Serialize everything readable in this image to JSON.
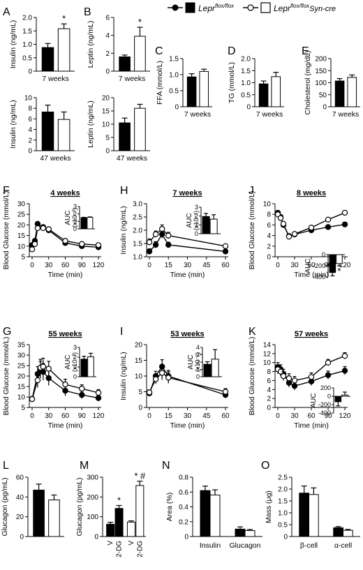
{
  "colors": {
    "ink": "#000000",
    "flox": "#000000",
    "syncre": "#ffffff"
  },
  "legend": {
    "flox_label": "Lepr",
    "flox_sup": "flox/flox",
    "syncre_label": "Lepr",
    "syncre_sup": "flox/flox",
    "syncre_suffix": "Syn-cre"
  },
  "chart_data": [
    {
      "id": "A1",
      "panel_letter": "A",
      "type": "bar",
      "title": "",
      "xlabel": "7 weeks",
      "ylabel": "Insulin (ng/mL)",
      "ylim": [
        0,
        2.0
      ],
      "yticks": [
        "0",
        "0.5",
        "1.0",
        "1.5",
        "2.0"
      ],
      "categories": [
        "Lepr flox/flox",
        "Lepr flox/flox Syn-cre"
      ],
      "values": [
        0.88,
        1.58
      ],
      "errors": [
        0.15,
        0.18
      ],
      "significance": [
        "",
        "*"
      ]
    },
    {
      "id": "A2",
      "panel_letter": "",
      "type": "bar",
      "title": "",
      "xlabel": "47 weeks",
      "ylabel": "Insulin (ng/mL)",
      "ylim": [
        0,
        10
      ],
      "yticks": [
        "0",
        "2",
        "4",
        "6",
        "8",
        "10"
      ],
      "categories": [
        "Lepr flox/flox",
        "Lepr flox/flox Syn-cre"
      ],
      "values": [
        7.3,
        5.9
      ],
      "errors": [
        1.3,
        1.4
      ],
      "significance": [
        "",
        ""
      ]
    },
    {
      "id": "B1",
      "panel_letter": "B",
      "type": "bar",
      "title": "",
      "xlabel": "7 weeks",
      "ylabel": "Leptin (ng/mL)",
      "ylim": [
        0,
        6
      ],
      "yticks": [
        "0",
        "2",
        "4",
        "6"
      ],
      "categories": [
        "Lepr flox/flox",
        "Lepr flox/flox Syn-cre"
      ],
      "values": [
        1.6,
        3.9
      ],
      "errors": [
        0.2,
        1.0
      ],
      "significance": [
        "",
        "*"
      ]
    },
    {
      "id": "B2",
      "panel_letter": "",
      "type": "bar",
      "title": "",
      "xlabel": "47 weeks",
      "ylabel": "Leptin (ng/mL)",
      "ylim": [
        0,
        20
      ],
      "yticks": [
        "0",
        "5",
        "10",
        "15",
        "20"
      ],
      "categories": [
        "Lepr flox/flox",
        "Lepr flox/flox Syn-cre"
      ],
      "values": [
        10.5,
        16.0
      ],
      "errors": [
        1.8,
        1.5
      ],
      "significance": [
        "",
        ""
      ]
    },
    {
      "id": "C",
      "panel_letter": "C",
      "type": "bar",
      "title": "",
      "xlabel": "7 weeks",
      "ylabel": "FFA (mmol/L)",
      "ylim": [
        0,
        1.5
      ],
      "yticks": [
        "0",
        "0.5",
        "1.0",
        "1.5"
      ],
      "categories": [
        "Lepr flox/flox",
        "Lepr flox/flox Syn-cre"
      ],
      "values": [
        0.93,
        1.1
      ],
      "errors": [
        0.1,
        0.07
      ],
      "significance": [
        "",
        ""
      ]
    },
    {
      "id": "D",
      "panel_letter": "D",
      "type": "bar",
      "title": "",
      "xlabel": "7 weeks",
      "ylabel": "TG (mmol/L)",
      "ylim": [
        0,
        2.0
      ],
      "yticks": [
        "0",
        "0.5",
        "1.0",
        "1.5",
        "2.0"
      ],
      "categories": [
        "Lepr flox/flox",
        "Lepr flox/flox Syn-cre"
      ],
      "values": [
        0.95,
        1.25
      ],
      "errors": [
        0.12,
        0.18
      ],
      "significance": [
        "",
        ""
      ]
    },
    {
      "id": "E",
      "panel_letter": "E",
      "type": "bar",
      "title": "",
      "xlabel": "7 weeks",
      "ylabel": "Cholesterol (mg/dL)",
      "ylim": [
        0,
        200
      ],
      "yticks": [
        "0",
        "50",
        "100",
        "150",
        "200"
      ],
      "categories": [
        "Lepr flox/flox",
        "Lepr flox/flox Syn-cre"
      ],
      "values": [
        107,
        122
      ],
      "errors": [
        10,
        10
      ],
      "significance": [
        "",
        ""
      ]
    },
    {
      "id": "F",
      "panel_letter": "F",
      "type": "line",
      "title": "4 weeks",
      "xlabel": "Time (min)",
      "ylabel": "Blood Glucose (mmol/L)",
      "xlim": [
        0,
        120
      ],
      "xticks": [
        "0",
        "30",
        "60",
        "90",
        "120"
      ],
      "ylim": [
        5,
        30
      ],
      "yticks": [
        "5",
        "10",
        "15",
        "20",
        "25",
        "30"
      ],
      "x": [
        0,
        5,
        10,
        20,
        30,
        60,
        90,
        120
      ],
      "series": [
        {
          "name": "Lepr flox/flox",
          "values": [
            10.5,
            12.5,
            20.5,
            19.0,
            17.5,
            11.5,
            10.0,
            9.5
          ],
          "errors": [
            0.8,
            0.8,
            0.8,
            0.7,
            0.7,
            0.6,
            0.5,
            0.5
          ]
        },
        {
          "name": "Lepr flox/flox Syn-cre",
          "values": [
            8.5,
            11.0,
            18.5,
            18.5,
            18.0,
            12.5,
            11.0,
            10.5
          ],
          "errors": [
            0.8,
            0.8,
            0.8,
            0.7,
            0.7,
            0.6,
            0.5,
            0.5
          ]
        }
      ],
      "inset": {
        "ylabel": "AUC",
        "ylabel_sup": "(x10⁻³)",
        "ylim": [
          0,
          3
        ],
        "yticks": [
          "0",
          "1",
          "2",
          "3"
        ],
        "values": [
          1.5,
          1.55
        ],
        "errors": [
          0.05,
          0.05
        ],
        "significance": [
          "",
          ""
        ]
      }
    },
    {
      "id": "H",
      "panel_letter": "H",
      "type": "line",
      "title": "7 weeks",
      "xlabel": "Time (min)",
      "ylabel": "Insulin (ng/mL)",
      "xlim": [
        0,
        60
      ],
      "xticks": [
        "0",
        "15",
        "30",
        "45",
        "60"
      ],
      "ylim": [
        1.0,
        3.0
      ],
      "yticks": [
        "1.0",
        "1.5",
        "2.0",
        "2.5",
        "3.0"
      ],
      "x": [
        0,
        5,
        10,
        15,
        60
      ],
      "series": [
        {
          "name": "Lepr flox/flox",
          "values": [
            1.2,
            1.45,
            1.85,
            1.45,
            1.2
          ],
          "errors": [
            0.1,
            0.12,
            0.15,
            0.1,
            0.05
          ]
        },
        {
          "name": "Lepr flox/flox Syn-cre",
          "values": [
            1.55,
            1.85,
            2.05,
            1.8,
            1.4
          ],
          "errors": [
            0.12,
            0.12,
            0.15,
            0.12,
            0.05
          ]
        }
      ],
      "inset": {
        "ylabel": "AUC",
        "ylabel_sup": "(x10⁻¹)",
        "ylim": [
          0,
          3
        ],
        "yticks": [
          "0",
          "1",
          "2",
          "3"
        ],
        "values": [
          1.95,
          1.65
        ],
        "errors": [
          0.35,
          0.5
        ],
        "significance": [
          "",
          ""
        ]
      }
    },
    {
      "id": "J",
      "panel_letter": "J",
      "type": "line",
      "title": "8 weeks",
      "xlabel": "Time (min)",
      "ylabel": "Blood Glucose (mmol/L)",
      "xlim": [
        0,
        120
      ],
      "xticks": [
        "0",
        "30",
        "60",
        "90",
        "120"
      ],
      "ylim": [
        0,
        10
      ],
      "yticks": [
        "0",
        "2",
        "4",
        "6",
        "8",
        "10"
      ],
      "x": [
        0,
        5,
        10,
        20,
        30,
        60,
        90,
        120
      ],
      "series": [
        {
          "name": "Lepr flox/flox",
          "values": [
            8.3,
            7.5,
            6.0,
            3.9,
            4.2,
            5.0,
            5.6,
            6.1
          ],
          "errors": [
            0.3,
            0.3,
            0.3,
            0.2,
            0.3,
            0.3,
            0.4,
            0.4
          ]
        },
        {
          "name": "Lepr flox/flox Syn-cre",
          "values": [
            8.0,
            7.3,
            6.2,
            3.8,
            4.3,
            5.5,
            7.0,
            8.3
          ],
          "errors": [
            0.3,
            0.3,
            0.3,
            0.2,
            0.3,
            0.3,
            0.4,
            0.4
          ]
        }
      ],
      "inset": {
        "ylabel": "AUC",
        "ylabel_sup": "",
        "ylim": [
          -400,
          0
        ],
        "yticks": [
          "0",
          "-200",
          "-400"
        ],
        "values": [
          -320,
          -160
        ],
        "errors": [
          60,
          40
        ],
        "significance": [
          "",
          "*"
        ]
      }
    },
    {
      "id": "G",
      "panel_letter": "G",
      "type": "line",
      "title": "55 weeks",
      "xlabel": "Time (min)",
      "ylabel": "Blood Glucose (mmol/L)",
      "xlim": [
        0,
        120
      ],
      "xticks": [
        "0",
        "30",
        "60",
        "90",
        "120"
      ],
      "ylim": [
        5,
        35
      ],
      "yticks": [
        "5",
        "10",
        "15",
        "20",
        "25",
        "30",
        "35"
      ],
      "x": [
        0,
        10,
        15,
        20,
        30,
        60,
        90,
        120
      ],
      "series": [
        {
          "name": "Lepr flox/flox",
          "values": [
            9.0,
            21.0,
            23.0,
            22.0,
            19.0,
            13.0,
            11.0,
            9.5
          ],
          "errors": [
            1.2,
            3.5,
            4.0,
            4.0,
            3.5,
            2.5,
            1.8,
            1.5
          ]
        },
        {
          "name": "Lepr flox/flox Syn-cre",
          "values": [
            9.0,
            18.0,
            24.0,
            24.5,
            23.5,
            16.0,
            14.0,
            12.0
          ],
          "errors": [
            1.2,
            3.5,
            4.0,
            4.0,
            3.5,
            2.5,
            1.8,
            1.5
          ]
        }
      ],
      "inset": {
        "ylabel": "AUC",
        "ylabel_sup": "(x10⁻³)",
        "ylim": [
          0,
          3
        ],
        "yticks": [
          "0",
          "1",
          "2",
          "3"
        ],
        "values": [
          1.8,
          2.05
        ],
        "errors": [
          0.3,
          0.35
        ],
        "significance": [
          "",
          ""
        ]
      }
    },
    {
      "id": "I",
      "panel_letter": "I",
      "type": "line",
      "title": "53 weeks",
      "xlabel": "Time (min)",
      "ylabel": "Insulin (ng/mL)",
      "xlim": [
        0,
        60
      ],
      "xticks": [
        "0",
        "15",
        "30",
        "45",
        "60"
      ],
      "ylim": [
        0,
        20
      ],
      "yticks": [
        "0",
        "5",
        "10",
        "15",
        "20"
      ],
      "x": [
        0,
        5,
        10,
        15,
        60
      ],
      "series": [
        {
          "name": "Lepr flox/flox",
          "values": [
            4.5,
            10.0,
            13.0,
            10.0,
            4.0
          ],
          "errors": [
            0.8,
            1.5,
            2.2,
            1.8,
            1.0
          ]
        },
        {
          "name": "Lepr flox/flox Syn-cre",
          "values": [
            4.8,
            9.0,
            11.0,
            9.5,
            5.0
          ],
          "errors": [
            0.8,
            1.5,
            2.2,
            1.8,
            1.0
          ]
        }
      ],
      "inset": {
        "ylabel": "AUC",
        "ylabel_sup": "(x10⁻²)",
        "ylim": [
          0,
          4
        ],
        "yticks": [
          "0",
          "1",
          "2",
          "3",
          "4"
        ],
        "values": [
          1.7,
          2.4
        ],
        "errors": [
          0.35,
          1.3
        ],
        "significance": [
          "",
          ""
        ]
      }
    },
    {
      "id": "K",
      "panel_letter": "K",
      "type": "line",
      "title": "57 weeks",
      "xlabel": "Time (min)",
      "ylabel": "Blood Glucose (mmol/L)",
      "xlim": [
        0,
        120
      ],
      "xticks": [
        "0",
        "30",
        "60",
        "90",
        "120"
      ],
      "ylim": [
        0,
        14
      ],
      "yticks": [
        "0",
        "2",
        "4",
        "6",
        "8",
        "10",
        "12",
        "14"
      ],
      "x": [
        0,
        5,
        10,
        20,
        30,
        60,
        90,
        120
      ],
      "series": [
        {
          "name": "Lepr flox/flox",
          "values": [
            9.0,
            8.5,
            7.5,
            5.5,
            4.8,
            5.8,
            7.2,
            8.2
          ],
          "errors": [
            1.0,
            1.0,
            1.0,
            1.0,
            0.9,
            0.9,
            0.9,
            0.9
          ]
        },
        {
          "name": "Lepr flox/flox Syn-cre",
          "values": [
            8.5,
            8.0,
            7.0,
            6.5,
            6.0,
            6.8,
            10.0,
            11.5
          ],
          "errors": [
            1.0,
            1.0,
            1.0,
            1.0,
            0.9,
            0.9,
            0.7,
            0.7
          ]
        }
      ],
      "inset": {
        "ylabel": "AUC",
        "ylabel_sup": "",
        "ylim": [
          -400,
          200
        ],
        "yticks": [
          "200",
          "0",
          "-200",
          "-400"
        ],
        "values": [
          -130,
          30
        ],
        "errors": [
          100,
          70
        ],
        "significance": [
          "",
          ""
        ]
      }
    },
    {
      "id": "L",
      "panel_letter": "L",
      "type": "bar",
      "title": "",
      "xlabel": "",
      "ylabel": "Glucagon (pg/mL)",
      "ylim": [
        0,
        60
      ],
      "yticks": [
        "0",
        "20",
        "40",
        "60"
      ],
      "categories": [
        "Lepr flox/flox",
        "Lepr flox/flox Syn-cre"
      ],
      "values": [
        47,
        37
      ],
      "errors": [
        6,
        5
      ],
      "significance": [
        "",
        ""
      ]
    },
    {
      "id": "M",
      "panel_letter": "M",
      "type": "bar",
      "title": "",
      "xlabel": "",
      "ylabel": "Glucagon (pg/mL)",
      "ylim": [
        0,
        300
      ],
      "yticks": [
        "0",
        "100",
        "200",
        "300"
      ],
      "categories": [
        "V",
        "2-DG",
        "V",
        "2-DG"
      ],
      "groups": [
        "Lepr flox/flox",
        "Lepr flox/flox",
        "Lepr flox/flox Syn-cre",
        "Lepr flox/flox Syn-cre"
      ],
      "values": [
        62,
        142,
        73,
        258
      ],
      "errors": [
        10,
        15,
        6,
        22
      ],
      "significance": [
        "",
        "*",
        "",
        "* #"
      ]
    },
    {
      "id": "N",
      "panel_letter": "N",
      "type": "bar",
      "title": "",
      "xlabel": "",
      "ylabel": "Area (%)",
      "ylim": [
        0,
        0.8
      ],
      "yticks": [
        "0",
        "0.2",
        "0.4",
        "0.6",
        "0.8"
      ],
      "categories": [
        "Insulin",
        "Glucagon"
      ],
      "series": [
        {
          "name": "Lepr flox/flox",
          "values": [
            0.62,
            0.1
          ],
          "errors": [
            0.06,
            0.03
          ]
        },
        {
          "name": "Lepr flox/flox Syn-cre",
          "values": [
            0.56,
            0.08
          ],
          "errors": [
            0.07,
            0.015
          ]
        }
      ]
    },
    {
      "id": "O",
      "panel_letter": "O",
      "type": "bar",
      "title": "",
      "xlabel": "",
      "ylabel": "Mass (μg)",
      "ylim": [
        0,
        2.5
      ],
      "yticks": [
        "0",
        "0.5",
        "1.0",
        "1.5",
        "2.0",
        "2.5"
      ],
      "categories": [
        "β-cell",
        "α-cell"
      ],
      "series": [
        {
          "name": "Lepr flox/flox",
          "values": [
            1.83,
            0.37
          ],
          "errors": [
            0.3,
            0.05
          ]
        },
        {
          "name": "Lepr flox/flox Syn-cre",
          "values": [
            1.77,
            0.26
          ],
          "errors": [
            0.28,
            0.04
          ]
        }
      ]
    }
  ]
}
